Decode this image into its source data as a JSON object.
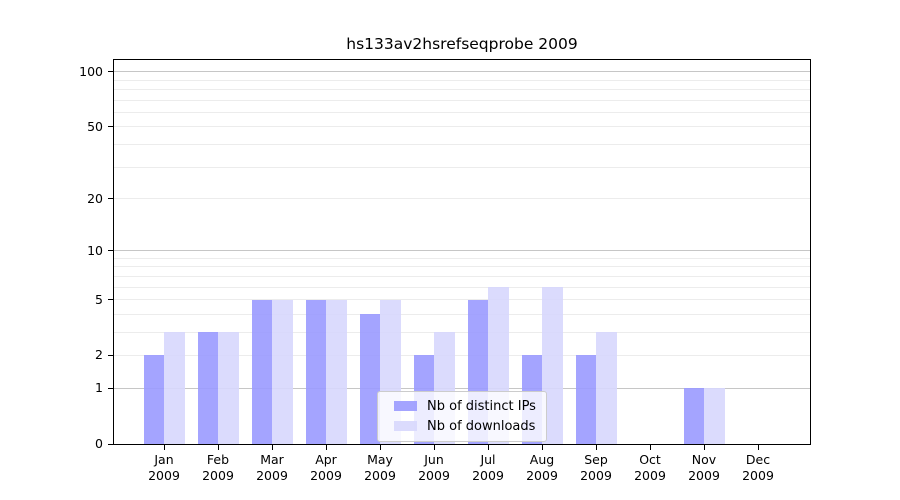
{
  "chart_data": {
    "type": "bar",
    "title": "hs133av2hsrefseqprobe 2009",
    "categories": [
      "Jan",
      "Feb",
      "Mar",
      "Apr",
      "May",
      "Jun",
      "Jul",
      "Aug",
      "Sep",
      "Oct",
      "Nov",
      "Dec"
    ],
    "year_label": "2009",
    "series": [
      {
        "key": "distinct-ips",
        "name": "Nb of distinct IPs",
        "color": "rgba(154,154,255,0.9)",
        "values": [
          2,
          3,
          5,
          5,
          4,
          2,
          5,
          2,
          2,
          0,
          1,
          0
        ]
      },
      {
        "key": "downloads",
        "name": "Nb of downloads",
        "color": "rgba(215,215,253,0.9)",
        "values": [
          3,
          3,
          5,
          5,
          5,
          3,
          6,
          6,
          3,
          0,
          1,
          0
        ]
      }
    ],
    "yscale": "log10(value+1)",
    "ylim": [
      0,
      116
    ],
    "yticks": [
      0,
      1,
      2,
      5,
      10,
      20,
      50,
      100
    ],
    "major_gridlines": [
      1,
      10,
      100
    ],
    "minor_gridlines": [
      2,
      3,
      4,
      5,
      6,
      7,
      8,
      9,
      20,
      30,
      40,
      50,
      60,
      70,
      80,
      90
    ],
    "grid": true,
    "legend_position": "lower center"
  }
}
